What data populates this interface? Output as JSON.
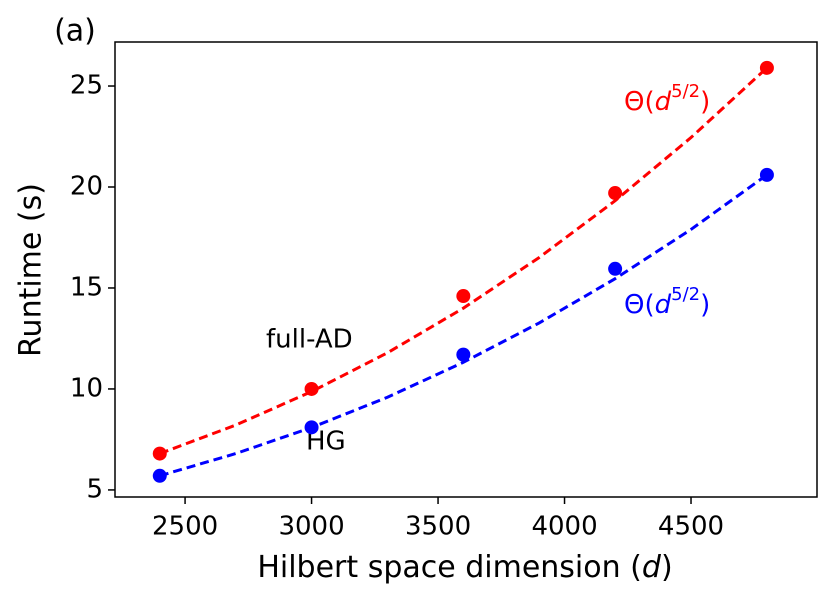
{
  "chart_data": {
    "type": "scatter",
    "panel_label": "(a)",
    "xlabel": [
      "Hilbert space dimension (",
      "d",
      ")"
    ],
    "ylabel": "Runtime (s)",
    "x": [
      2400,
      3000,
      3600,
      4200,
      4800
    ],
    "series": [
      {
        "name": "full-AD",
        "color": "#ff0000",
        "values": [
          6.8,
          10.0,
          14.6,
          19.7,
          25.9
        ]
      },
      {
        "name": "HG",
        "color": "#0000ff",
        "values": [
          5.7,
          8.1,
          11.7,
          15.95,
          20.6
        ]
      }
    ],
    "fits": [
      {
        "color": "#ff0000",
        "x": [
          2400,
          2700,
          3000,
          3300,
          3600,
          3900,
          4200,
          4500,
          4800
        ],
        "values": [
          6.8,
          8.21,
          9.87,
          11.79,
          14.0,
          16.51,
          19.32,
          22.45,
          25.9
        ],
        "label": [
          "Θ(",
          "d",
          "5/2",
          ")"
        ]
      },
      {
        "color": "#0000ff",
        "x": [
          2400,
          2700,
          3000,
          3300,
          3600,
          3900,
          4200,
          4500,
          4800
        ],
        "values": [
          5.7,
          6.8,
          8.09,
          9.59,
          11.32,
          13.27,
          15.46,
          17.9,
          20.6
        ],
        "label": [
          "Θ(",
          "d",
          "5/2",
          ")"
        ]
      }
    ],
    "xlim": [
      2223,
      4998
    ],
    "xticks": [
      2500,
      3000,
      3500,
      4000,
      4500
    ],
    "ylim": [
      4.65,
      27.18
    ],
    "yticks": [
      5,
      10,
      15,
      20,
      25
    ],
    "grid": false
  }
}
